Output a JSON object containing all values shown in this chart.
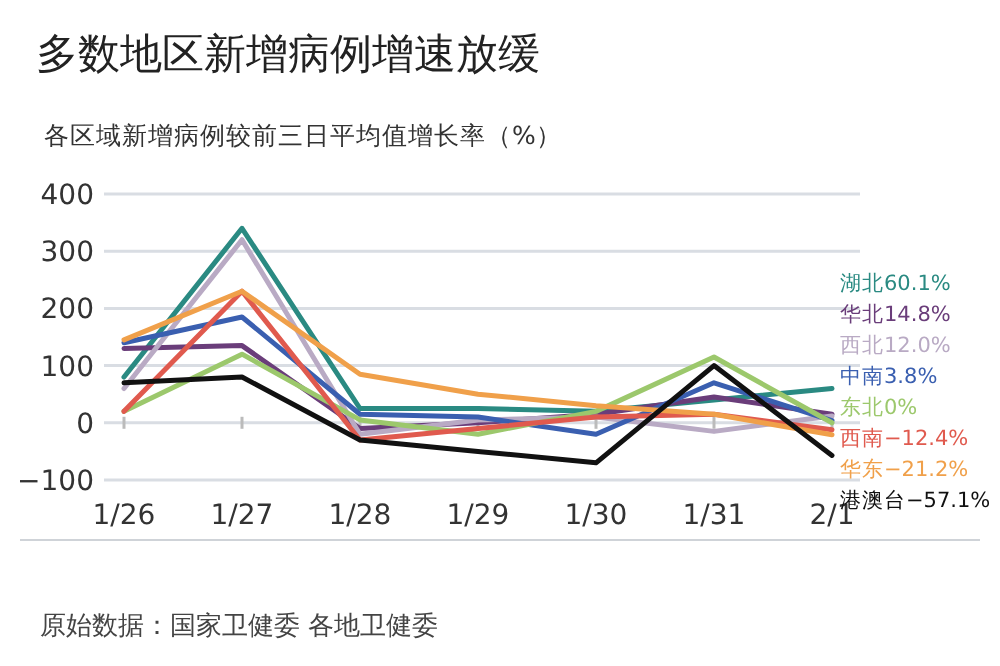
{
  "chart_data": {
    "type": "line",
    "title": "多数地区新增病例增速放缓",
    "subtitle": "各区域新增病例较前三日平均值增长率（%）",
    "categories": [
      "1/26",
      "1/27",
      "1/28",
      "1/29",
      "1/30",
      "1/31",
      "2/1"
    ],
    "series": [
      {
        "name": "湖北60.1%",
        "color": "#2a8a82",
        "values": [
          80,
          340,
          25,
          25,
          20,
          40,
          60
        ]
      },
      {
        "name": "华北14.8%",
        "color": "#6a3d7a",
        "values": [
          130,
          135,
          -10,
          0,
          15,
          45,
          15
        ]
      },
      {
        "name": "西北12.0%",
        "color": "#b9aac4",
        "values": [
          60,
          320,
          -20,
          5,
          10,
          -15,
          12
        ]
      },
      {
        "name": "中南3.8%",
        "color": "#3a5fb0",
        "values": [
          140,
          185,
          15,
          10,
          -20,
          70,
          4
        ]
      },
      {
        "name": "东北0%",
        "color": "#9cc86c",
        "values": [
          20,
          120,
          5,
          -20,
          20,
          115,
          0
        ]
      },
      {
        "name": "西南−12.4%",
        "color": "#e05a4e",
        "values": [
          20,
          230,
          -30,
          -10,
          10,
          15,
          -12
        ]
      },
      {
        "name": "华东−21.2%",
        "color": "#f0a04a",
        "values": [
          145,
          230,
          85,
          50,
          30,
          15,
          -21
        ]
      },
      {
        "name": "港澳台−57.1%",
        "color": "#111111",
        "values": [
          70,
          80,
          -30,
          -50,
          -70,
          100,
          -57
        ]
      }
    ],
    "ylim": [
      -100,
      400
    ],
    "yticks": [
      -100,
      0,
      100,
      200,
      300,
      400
    ],
    "grid": "y",
    "legend": "right",
    "annotations": [
      "原始数据：国家卫健委 各地卫健委"
    ]
  }
}
